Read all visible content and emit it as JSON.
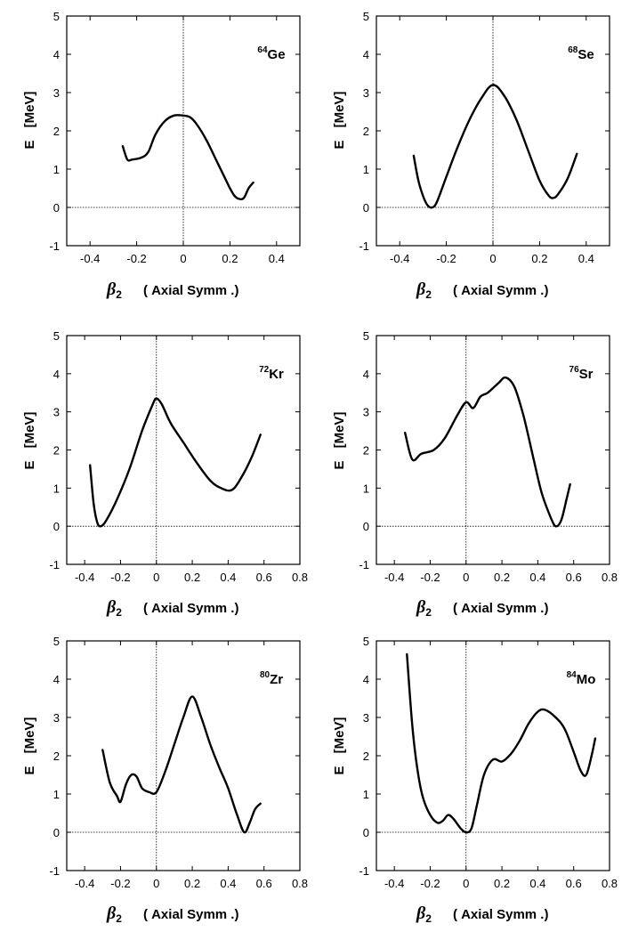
{
  "figure": {
    "axis_symbol": "β",
    "axis_subscript": "2",
    "axis_suffix": "( Axial Symm .)",
    "ylabel": "E",
    "yunit": "[MeV]"
  },
  "chart_data": [
    {
      "type": "line",
      "nucleus": "Ge",
      "mass_number": "64",
      "xlabel": "β2 ( Axial Symm .)",
      "ylabel": "E [MeV]",
      "xlim": [
        -0.5,
        0.5
      ],
      "ylim": [
        -1,
        5
      ],
      "xticks": [
        -0.4,
        -0.2,
        0,
        0.2,
        0.4
      ],
      "xtick_labels": [
        "-0.4",
        "-0.2",
        "0",
        "0.2",
        "0.4"
      ],
      "yticks": [
        -1,
        0,
        1,
        2,
        3,
        4,
        5
      ],
      "ytick_labels": [
        "-1",
        "0",
        "1",
        "2",
        "3",
        "4",
        "5"
      ],
      "x": [
        -0.26,
        -0.24,
        -0.22,
        -0.18,
        -0.15,
        -0.12,
        -0.08,
        -0.04,
        0.0,
        0.03,
        0.06,
        0.1,
        0.14,
        0.18,
        0.2,
        0.22,
        0.24,
        0.26,
        0.28,
        0.3
      ],
      "y": [
        1.6,
        1.25,
        1.25,
        1.3,
        1.45,
        1.9,
        2.25,
        2.4,
        2.4,
        2.35,
        2.15,
        1.75,
        1.25,
        0.75,
        0.5,
        0.3,
        0.22,
        0.25,
        0.5,
        0.65
      ]
    },
    {
      "type": "line",
      "nucleus": "Se",
      "mass_number": "68",
      "xlabel": "β2 ( Axial Symm .)",
      "ylabel": "E [MeV]",
      "xlim": [
        -0.5,
        0.5
      ],
      "ylim": [
        -1,
        5
      ],
      "xticks": [
        -0.4,
        -0.2,
        0,
        0.2,
        0.4
      ],
      "xtick_labels": [
        "-0.4",
        "-0.2",
        "0",
        "0.2",
        "0.4"
      ],
      "yticks": [
        -1,
        0,
        1,
        2,
        3,
        4,
        5
      ],
      "ytick_labels": [
        "-1",
        "0",
        "1",
        "2",
        "3",
        "4",
        "5"
      ],
      "x": [
        -0.34,
        -0.32,
        -0.3,
        -0.28,
        -0.26,
        -0.24,
        -0.2,
        -0.15,
        -0.1,
        -0.05,
        0.0,
        0.05,
        0.1,
        0.15,
        0.2,
        0.24,
        0.26,
        0.28,
        0.32,
        0.36
      ],
      "y": [
        1.35,
        0.7,
        0.3,
        0.05,
        0.0,
        0.15,
        0.8,
        1.6,
        2.3,
        2.85,
        3.2,
        2.9,
        2.3,
        1.5,
        0.7,
        0.3,
        0.25,
        0.35,
        0.75,
        1.4
      ]
    },
    {
      "type": "line",
      "nucleus": "Kr",
      "mass_number": "72",
      "xlabel": "β2 ( Axial Symm .)",
      "ylabel": "E [MeV]",
      "xlim": [
        -0.5,
        0.8
      ],
      "ylim": [
        -1,
        5
      ],
      "xticks": [
        -0.4,
        -0.2,
        0,
        0.2,
        0.4,
        0.6,
        0.8
      ],
      "xtick_labels": [
        "-0.4",
        "-0.2",
        "0",
        "0.2",
        "0.4",
        "0.6",
        "0.8"
      ],
      "yticks": [
        -1,
        0,
        1,
        2,
        3,
        4,
        5
      ],
      "ytick_labels": [
        "-1",
        "0",
        "1",
        "2",
        "3",
        "4",
        "5"
      ],
      "x": [
        -0.37,
        -0.35,
        -0.33,
        -0.31,
        -0.28,
        -0.22,
        -0.15,
        -0.08,
        -0.02,
        0.0,
        0.03,
        0.08,
        0.15,
        0.22,
        0.3,
        0.36,
        0.42,
        0.47,
        0.53,
        0.58
      ],
      "y": [
        1.6,
        0.6,
        0.1,
        0.0,
        0.15,
        0.7,
        1.5,
        2.5,
        3.2,
        3.35,
        3.2,
        2.7,
        2.2,
        1.7,
        1.2,
        1.0,
        0.95,
        1.25,
        1.8,
        2.4
      ]
    },
    {
      "type": "line",
      "nucleus": "Sr",
      "mass_number": "76",
      "xlabel": "β2 ( Axial Symm .)",
      "ylabel": "E [MeV]",
      "xlim": [
        -0.5,
        0.8
      ],
      "ylim": [
        -1,
        5
      ],
      "xticks": [
        -0.4,
        -0.2,
        0,
        0.2,
        0.4,
        0.6,
        0.8
      ],
      "xtick_labels": [
        "-0.4",
        "-0.2",
        "0",
        "0.2",
        "0.4",
        "0.6",
        "0.8"
      ],
      "yticks": [
        -1,
        0,
        1,
        2,
        3,
        4,
        5
      ],
      "ytick_labels": [
        "-1",
        "0",
        "1",
        "2",
        "3",
        "4",
        "5"
      ],
      "x": [
        -0.34,
        -0.3,
        -0.25,
        -0.18,
        -0.12,
        -0.05,
        0.0,
        0.04,
        0.08,
        0.12,
        0.18,
        0.22,
        0.27,
        0.32,
        0.37,
        0.42,
        0.47,
        0.5,
        0.53,
        0.56,
        0.58
      ],
      "y": [
        2.45,
        1.75,
        1.9,
        2.0,
        2.3,
        2.9,
        3.25,
        3.1,
        3.4,
        3.5,
        3.75,
        3.9,
        3.65,
        2.9,
        1.9,
        0.9,
        0.25,
        0.0,
        0.15,
        0.7,
        1.1
      ]
    },
    {
      "type": "line",
      "nucleus": "Zr",
      "mass_number": "80",
      "xlabel": "β2 ( Axial Symm .)",
      "ylabel": "E [MeV]",
      "xlim": [
        -0.5,
        0.8
      ],
      "ylim": [
        -1,
        5
      ],
      "xticks": [
        -0.4,
        -0.2,
        0,
        0.2,
        0.4,
        0.6,
        0.8
      ],
      "xtick_labels": [
        "-0.4",
        "-0.2",
        "0",
        "0.2",
        "0.4",
        "0.6",
        "0.8"
      ],
      "yticks": [
        -1,
        0,
        1,
        2,
        3,
        4,
        5
      ],
      "ytick_labels": [
        "-1",
        "0",
        "1",
        "2",
        "3",
        "4",
        "5"
      ],
      "x": [
        -0.3,
        -0.26,
        -0.22,
        -0.2,
        -0.17,
        -0.14,
        -0.11,
        -0.08,
        -0.04,
        0.0,
        0.05,
        0.1,
        0.15,
        0.2,
        0.25,
        0.3,
        0.35,
        0.4,
        0.45,
        0.49,
        0.52,
        0.55,
        0.58
      ],
      "y": [
        2.15,
        1.3,
        0.95,
        0.8,
        1.25,
        1.5,
        1.45,
        1.15,
        1.05,
        1.05,
        1.6,
        2.3,
        3.0,
        3.55,
        3.0,
        2.3,
        1.7,
        1.15,
        0.45,
        0.0,
        0.25,
        0.6,
        0.75
      ]
    },
    {
      "type": "line",
      "nucleus": "Mo",
      "mass_number": "84",
      "xlabel": "β2 ( Axial Symm .)",
      "ylabel": "E [MeV]",
      "xlim": [
        -0.5,
        0.8
      ],
      "ylim": [
        -1,
        5
      ],
      "xticks": [
        -0.4,
        -0.2,
        0,
        0.2,
        0.4,
        0.6,
        0.8
      ],
      "xtick_labels": [
        "-0.4",
        "-0.2",
        "0",
        "0.2",
        "0.4",
        "0.6",
        "0.8"
      ],
      "yticks": [
        -1,
        0,
        1,
        2,
        3,
        4,
        5
      ],
      "ytick_labels": [
        "-1",
        "0",
        "1",
        "2",
        "3",
        "4",
        "5"
      ],
      "x": [
        -0.33,
        -0.3,
        -0.27,
        -0.24,
        -0.2,
        -0.16,
        -0.13,
        -0.1,
        -0.07,
        -0.03,
        0.0,
        0.03,
        0.06,
        0.1,
        0.15,
        0.2,
        0.25,
        0.3,
        0.35,
        0.4,
        0.44,
        0.5,
        0.55,
        0.6,
        0.64,
        0.67,
        0.7,
        0.72
      ],
      "y": [
        4.65,
        2.8,
        1.6,
        0.9,
        0.45,
        0.25,
        0.3,
        0.45,
        0.35,
        0.1,
        0.0,
        0.1,
        0.7,
        1.5,
        1.9,
        1.85,
        2.05,
        2.4,
        2.85,
        3.15,
        3.2,
        3.0,
        2.7,
        2.1,
        1.6,
        1.5,
        2.0,
        2.45
      ]
    }
  ]
}
